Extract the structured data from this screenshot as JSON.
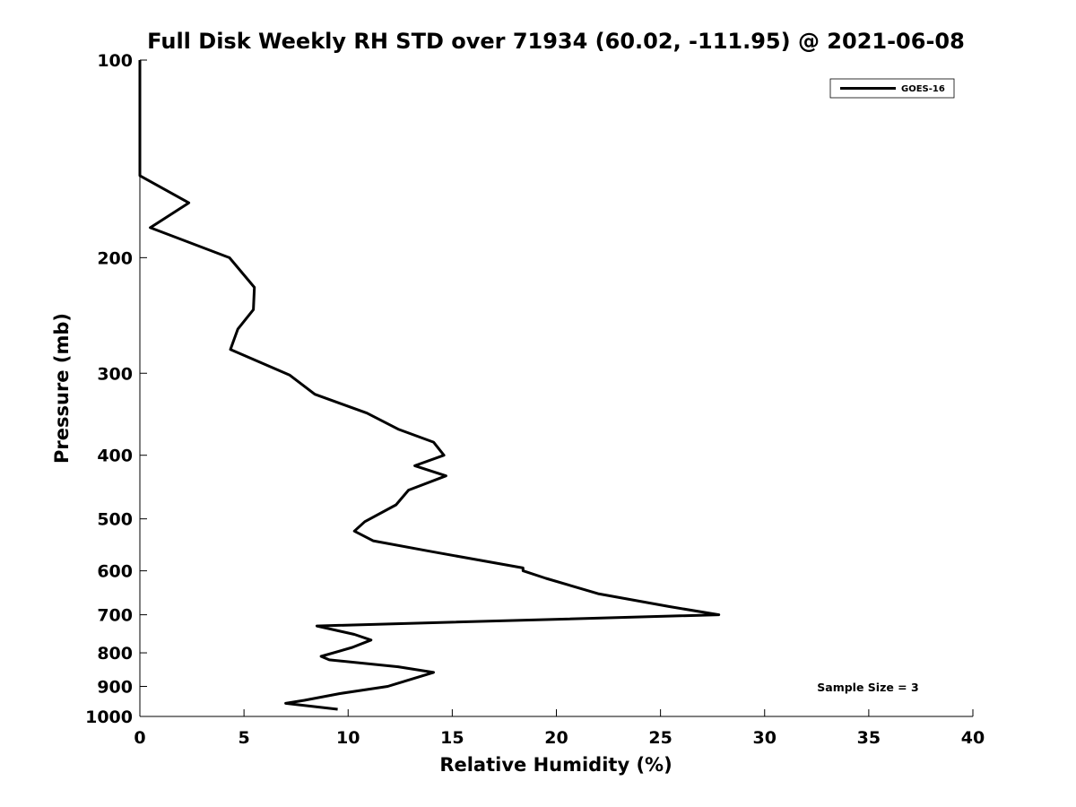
{
  "chart_data": {
    "type": "line",
    "title": "Full Disk Weekly RH STD over 71934 (60.02, -111.95) @ 2021-06-08",
    "xlabel": "Relative Humidity (%)",
    "ylabel": "Pressure (mb)",
    "xlim": [
      0,
      40
    ],
    "ylim": [
      100,
      1000
    ],
    "yscale": "log",
    "y_reversed": true,
    "grid": false,
    "x_ticks": [
      0,
      5,
      10,
      15,
      20,
      25,
      30,
      35,
      40
    ],
    "y_ticks": [
      100,
      200,
      300,
      400,
      500,
      600,
      700,
      800,
      900,
      1000
    ],
    "legend": {
      "position": "top-right",
      "entries": [
        "GOES-16"
      ]
    },
    "annotation": "Sample Size = 3",
    "series": [
      {
        "name": "GOES-16",
        "color": "#000000",
        "x": [
          0,
          0,
          0,
          2.35,
          0.5,
          4.3,
          5.5,
          5.45,
          4.7,
          4.35,
          7.2,
          8.4,
          10.9,
          12.4,
          14.1,
          14.6,
          13.2,
          14.7,
          12.9,
          12.3,
          10.8,
          10.3,
          11.2,
          13.9,
          18.4,
          18.4,
          19.5,
          22,
          25.4,
          27.8,
          8.5,
          10.3,
          11.1,
          10.2,
          8.7,
          9.1,
          12.4,
          14.1,
          11.9,
          9.6,
          7.9,
          7,
          9.5
        ],
        "y": [
          100,
          120,
          150,
          165,
          180,
          200,
          222,
          240,
          257,
          276,
          302,
          323,
          345,
          365,
          382,
          400,
          415,
          430,
          452,
          476,
          505,
          522,
          540,
          560,
          594,
          600,
          616,
          650,
          680,
          700,
          728,
          750,
          765,
          785,
          810,
          820,
          840,
          857,
          900,
          923,
          945,
          955,
          975
        ]
      }
    ]
  }
}
